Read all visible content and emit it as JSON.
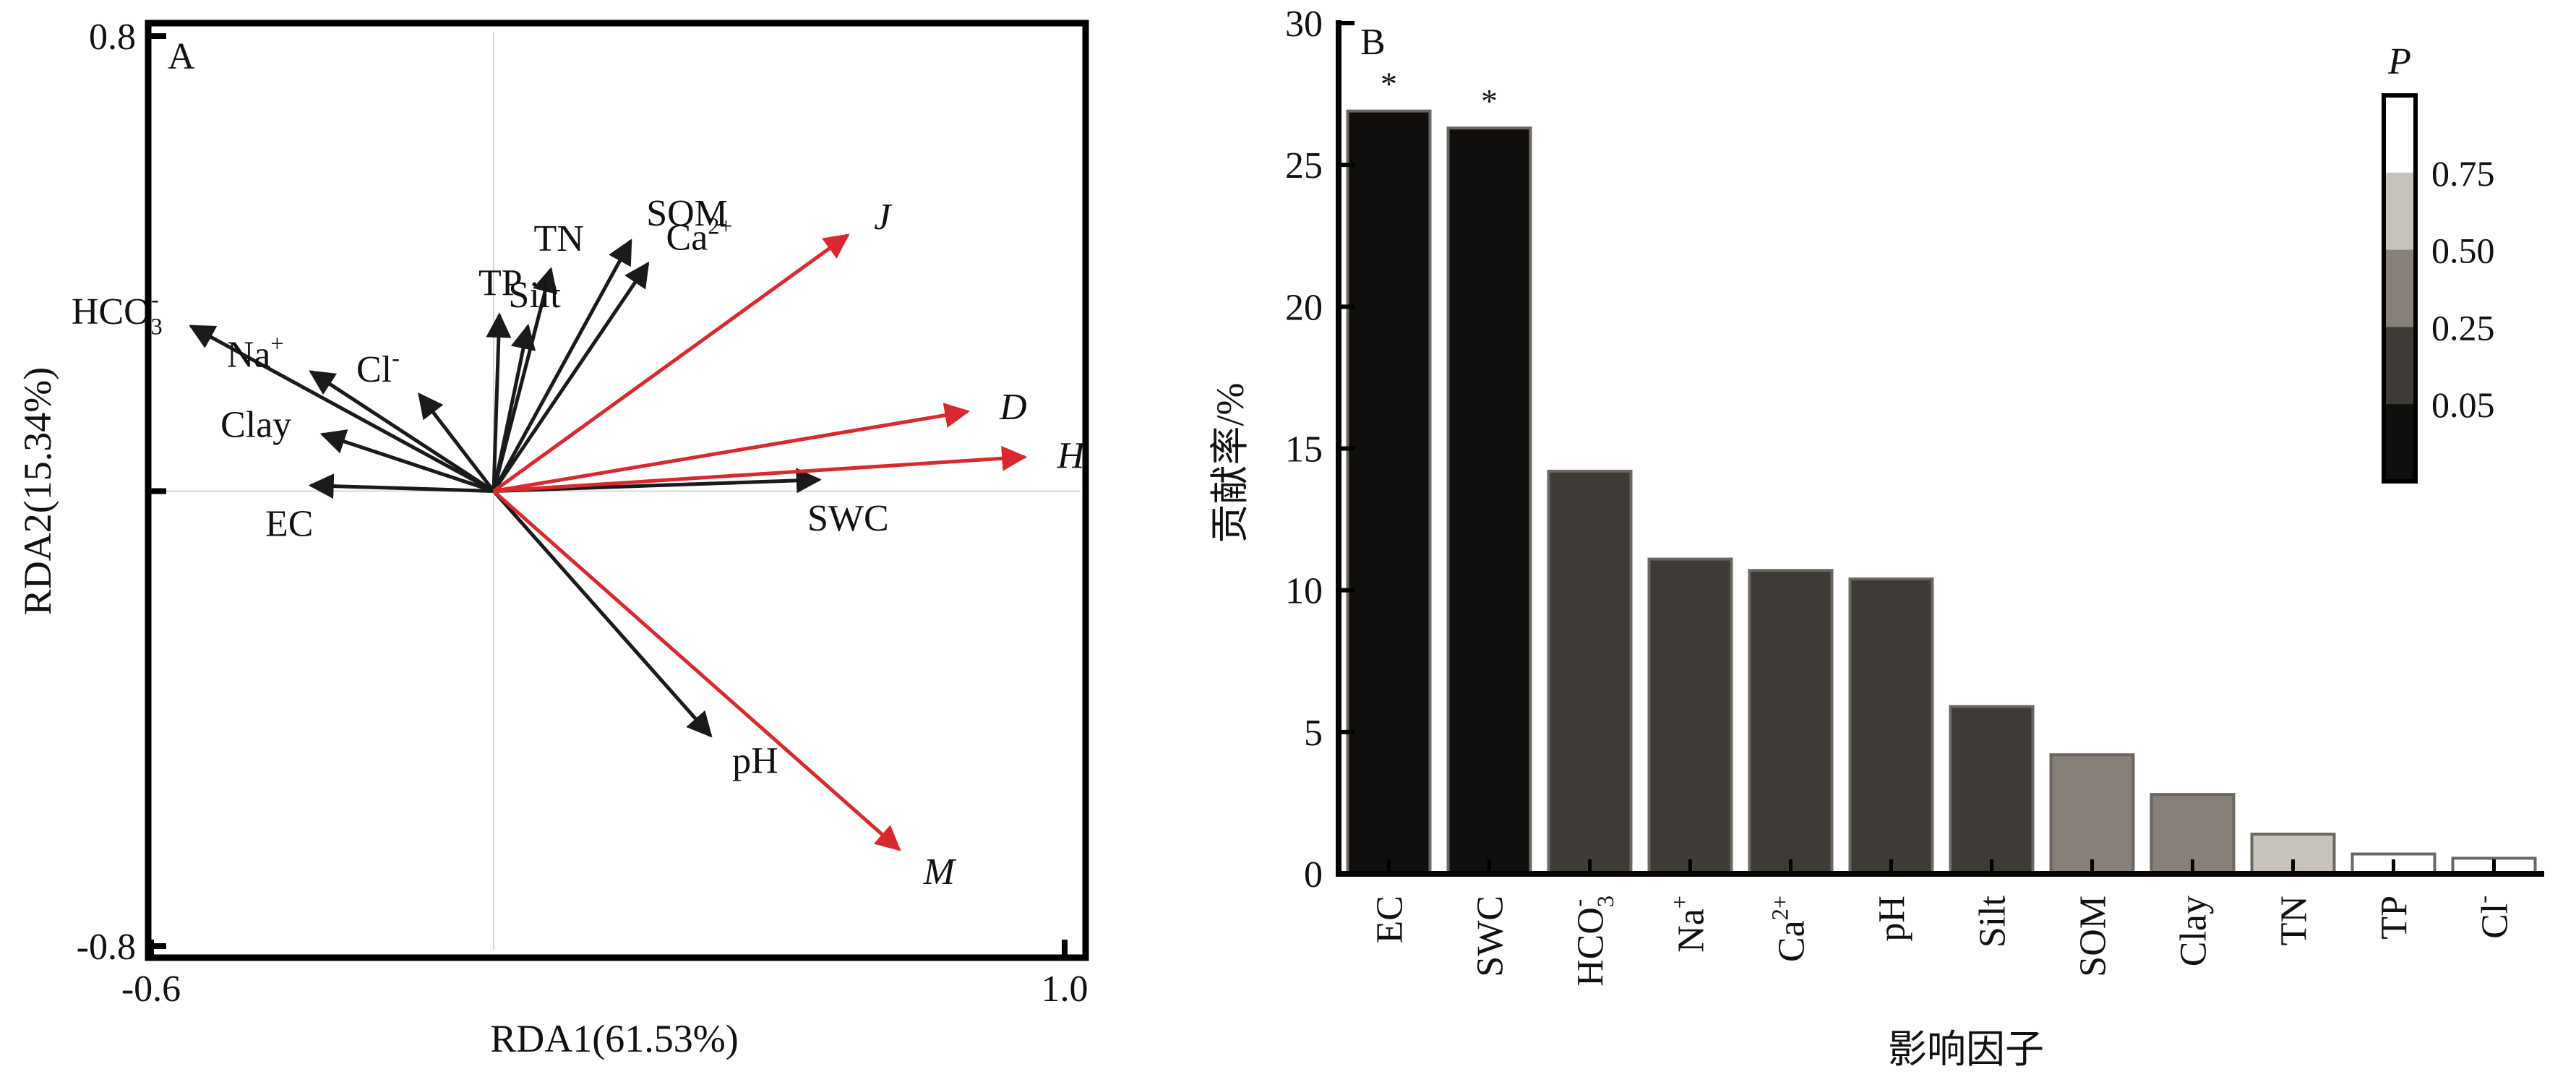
{
  "chart_data": [
    {
      "type": "biplot",
      "panel_label": "A",
      "xlabel": "RDA1(61.53%)",
      "ylabel": "RDA2(15.34%)",
      "xlim": [
        -0.6,
        1.0
      ],
      "ylim": [
        -0.8,
        0.8
      ],
      "xticks": [
        "-0.6",
        "1.0"
      ],
      "yticks": [
        "0.8",
        "-0.8"
      ],
      "colors": {
        "environment": "#1a1a1a",
        "response": "#d9282e",
        "crosshair": "#d8d8d8"
      },
      "environment_vectors": [
        {
          "label": "HCO",
          "sub": "3",
          "sup": "-",
          "x": -0.53,
          "y": 0.29
        },
        {
          "label": "Na",
          "sup": "+",
          "x": -0.32,
          "y": 0.21
        },
        {
          "label": "Cl",
          "sup": "-",
          "x": -0.13,
          "y": 0.17
        },
        {
          "label": "Clay",
          "x": -0.3,
          "y": 0.1
        },
        {
          "label": "EC",
          "x": -0.32,
          "y": 0.01
        },
        {
          "label": "Silt",
          "x": 0.06,
          "y": 0.29
        },
        {
          "label": "TP",
          "x": 0.01,
          "y": 0.31
        },
        {
          "label": "TN",
          "x": 0.1,
          "y": 0.39
        },
        {
          "label": "SOM",
          "x": 0.24,
          "y": 0.44
        },
        {
          "label": "Ca",
          "sup": "2+",
          "x": 0.27,
          "y": 0.4
        },
        {
          "label": "SWC",
          "x": 0.57,
          "y": 0.02
        },
        {
          "label": "pH",
          "x": 0.38,
          "y": -0.43
        }
      ],
      "response_vectors": [
        {
          "label": "J",
          "x": 0.62,
          "y": 0.45
        },
        {
          "label": "D",
          "x": 0.83,
          "y": 0.14
        },
        {
          "label": "H",
          "x": 0.93,
          "y": 0.06
        },
        {
          "label": "M",
          "x": 0.71,
          "y": -0.63
        }
      ]
    },
    {
      "type": "bar",
      "panel_label": "B",
      "xlabel": "影响因子",
      "ylabel": "贡献率/%",
      "ylim": [
        0,
        30
      ],
      "yticks": [
        0,
        5,
        10,
        15,
        20,
        25,
        30
      ],
      "categories": [
        {
          "label": "EC"
        },
        {
          "label": "SWC"
        },
        {
          "label": "HCO",
          "sub": "3",
          "sup": "-"
        },
        {
          "label": "Na",
          "sup": "+"
        },
        {
          "label": "Ca",
          "sup": "2+"
        },
        {
          "label": "pH"
        },
        {
          "label": "Silt"
        },
        {
          "label": "SOM"
        },
        {
          "label": "Clay"
        },
        {
          "label": "TN"
        },
        {
          "label": "TP"
        },
        {
          "label": "Cl",
          "sup": "-"
        }
      ],
      "values": [
        26.9,
        26.3,
        14.2,
        11.1,
        10.7,
        10.4,
        5.9,
        4.2,
        2.8,
        1.4,
        0.7,
        0.55
      ],
      "p_class": [
        0,
        0,
        1,
        1,
        1,
        1,
        1,
        2,
        2,
        3,
        4,
        4
      ],
      "significance": [
        "*",
        "*",
        "",
        "",
        "",
        "",
        "",
        "",
        "",
        "",
        "",
        ""
      ],
      "legend": {
        "title": "P",
        "position": "top-right",
        "colors": [
          "#100f0d",
          "#3e3a36",
          "#878079",
          "#c8c2bd",
          "#ffffff"
        ],
        "tick_labels": [
          "0.05",
          "0.25",
          "0.50",
          "0.75"
        ]
      }
    }
  ]
}
